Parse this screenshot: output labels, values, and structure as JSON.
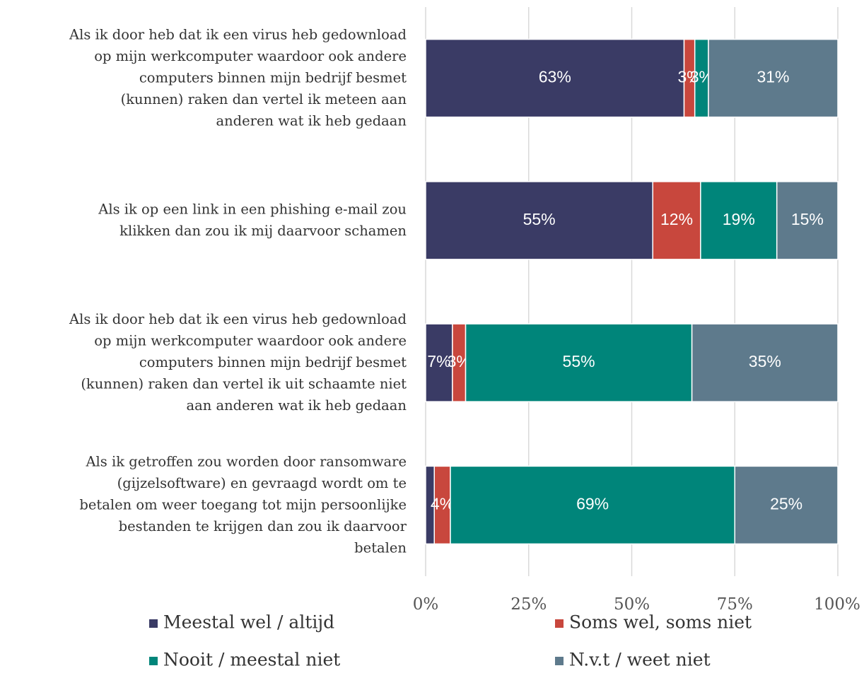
{
  "chart_data": {
    "type": "stacked_barh",
    "categories": [
      "Als ik door heb dat ik een virus heb gedownload\nop mijn werkcomputer waardoor ook andere\ncomputers binnen mijn bedrijf besmet\n(kunnen) raken dan vertel ik meteen aan\nanderen wat ik heb gedaan",
      "Als ik op een link in een phishing e-mail zou\nklikken dan zou ik mij daarvoor schamen",
      "Als ik door heb dat ik een virus heb gedownload\nop mijn werkcomputer waardoor ook andere\ncomputers binnen mijn bedrijf besmet\n(kunnen) raken dan vertel ik uit schaamte niet\naan anderen wat ik heb gedaan",
      "Als ik getroffen zou worden door ransomware\n(gijzelsoftware) en gevraagd wordt om te\nbetalen om weer toegang tot mijn persoonlijke\nbestanden te krijgen dan zou ik daarvoor\nbetalen"
    ],
    "series": [
      {
        "name": "Meestal wel / altijd",
        "color": "#3a3b65",
        "values": [
          62.7,
          55.1,
          6.5,
          2.1
        ],
        "value_labels": [
          "63%",
          "55%",
          "7%",
          null
        ]
      },
      {
        "name": "Soms wel, soms niet",
        "color": "#c8473d",
        "values": [
          2.6,
          11.6,
          3.2,
          3.9
        ],
        "value_labels": [
          "3%",
          "12%",
          "3%",
          "4%"
        ]
      },
      {
        "name": "Nooit / meestal niet",
        "color": "#00857a",
        "values": [
          3.3,
          18.5,
          54.9,
          69.0
        ],
        "value_labels": [
          "3%",
          "19%",
          "55%",
          "69%"
        ]
      },
      {
        "name": "N.v.t / weet niet",
        "color": "#5e7a8c",
        "values": [
          31.4,
          14.8,
          35.4,
          25.0
        ],
        "value_labels": [
          "31%",
          "15%",
          "35%",
          "25%"
        ]
      }
    ],
    "xlim": [
      0,
      100
    ],
    "xticks": [
      {
        "value": 0,
        "label": "0%"
      },
      {
        "value": 25,
        "label": "25%"
      },
      {
        "value": 50,
        "label": "50%"
      },
      {
        "value": 75,
        "label": "75%"
      },
      {
        "value": 100,
        "label": "100%"
      }
    ],
    "grid": true,
    "legend": "bottom"
  }
}
